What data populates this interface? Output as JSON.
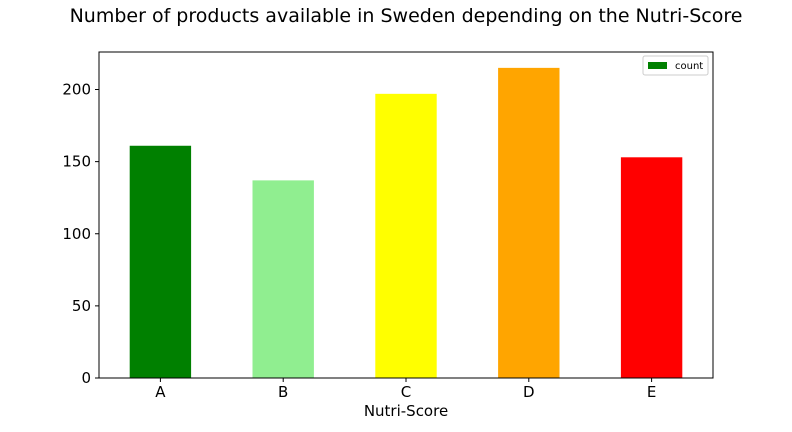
{
  "chart_data": {
    "type": "bar",
    "title": "Number of products available in Sweden depending on the Nutri-Score",
    "xlabel": "Nutri-Score",
    "ylabel": "",
    "categories": [
      "A",
      "B",
      "C",
      "D",
      "E"
    ],
    "series": [
      {
        "name": "count",
        "values": [
          161,
          137,
          197,
          215,
          153
        ]
      }
    ],
    "bar_colors": [
      "#008000",
      "#90ee90",
      "#ffff00",
      "#ffa500",
      "#ff0000"
    ],
    "legend_color": "#008000",
    "ylim": [
      0,
      226
    ],
    "yticks": [
      0,
      50,
      100,
      150,
      200
    ],
    "grid": false,
    "legend_position": "top-right"
  }
}
